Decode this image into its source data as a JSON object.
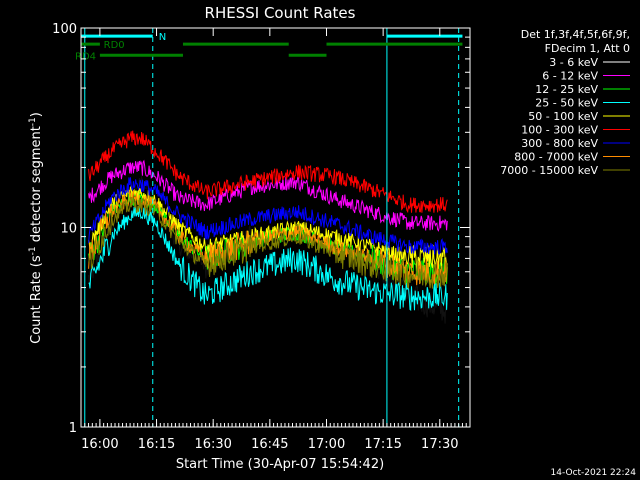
{
  "chart_data": {
    "type": "line",
    "title": "RHESSI Count Rates",
    "xlabel": "Start Time (30-Apr-07 15:54:42)",
    "ylabel_main": "Count Rate (s",
    "ylabel_sup": "-1",
    "ylabel_rest": " detector segment",
    "ylabel_sup2": "-1",
    "ylabel_close": ")",
    "x_range_minutes": [
      -5,
      98
    ],
    "x_tick_labels": [
      "16:00",
      "16:15",
      "16:30",
      "16:45",
      "17:00",
      "17:15",
      "17:30"
    ],
    "x_tick_minutes": [
      0,
      15,
      30,
      45,
      60,
      75,
      90
    ],
    "y_scale": "log",
    "ylim": [
      1,
      100
    ],
    "y_tick_labels": [
      "1",
      "10",
      "100"
    ],
    "y_tick_values": [
      1,
      10,
      100
    ],
    "legend_header": [
      "Det 1f,3f,4f,5f,6f,9f,",
      "FDecim 1, Att 0"
    ],
    "legend_placement": "right",
    "series": [
      {
        "name": "3 - 6 keV",
        "color": "#000000",
        "values": [
          5.5,
          10,
          15.5,
          17,
          13,
          8,
          6.5,
          8.8,
          9.5,
          8,
          7,
          4.5,
          3.8
        ]
      },
      {
        "name": "6 - 12 keV",
        "color": "#ff00ff",
        "values": [
          14,
          18,
          20,
          20,
          18,
          14,
          13,
          16,
          17,
          14,
          12,
          10.5,
          10.5
        ]
      },
      {
        "name": "12 - 25 keV",
        "color": "#00ff00",
        "values": [
          7,
          12,
          14,
          14,
          13,
          9,
          7,
          8.5,
          9.5,
          8,
          7,
          6,
          6
        ]
      },
      {
        "name": "25 - 50 keV",
        "color": "#00ffff",
        "values": [
          5,
          9,
          11.5,
          12,
          10.5,
          6.5,
          4.5,
          6,
          7,
          5.5,
          4.8,
          4.5,
          4.5
        ]
      },
      {
        "name": "50 - 100 keV",
        "color": "#ffff00",
        "values": [
          8,
          13,
          15,
          15,
          13.5,
          10,
          8,
          9,
          10,
          9,
          8,
          7,
          7
        ]
      },
      {
        "name": "100 - 300 keV",
        "color": "#ff0000",
        "values": [
          18,
          24,
          28,
          28,
          24,
          18,
          15,
          17,
          19,
          18,
          15.5,
          13,
          13
        ]
      },
      {
        "name": "300 - 800 keV",
        "color": "#0000ff",
        "values": [
          9,
          14,
          16.5,
          16.5,
          15,
          11.5,
          9.5,
          11,
          12,
          10.5,
          9,
          8,
          8
        ]
      },
      {
        "name": "800 - 7000 keV",
        "color": "#ff8c00",
        "values": [
          7,
          12,
          14,
          14,
          12.5,
          9,
          7,
          8.5,
          9.5,
          8,
          7,
          6,
          6
        ]
      },
      {
        "name": "7000 - 15000 keV",
        "color": "#808000",
        "values": [
          6.5,
          11,
          13,
          13,
          12,
          8.5,
          6.5,
          8,
          9,
          7.5,
          6.5,
          5.8,
          5.8
        ]
      }
    ],
    "sample_minutes": [
      -3,
      3,
      8,
      11,
      15,
      21,
      28,
      40,
      52,
      62,
      72,
      82,
      92
    ],
    "state_bars": [
      {
        "label": "N",
        "color": "#00ffff",
        "level": 91,
        "segments": [
          [
            -5,
            14
          ],
          [
            76,
            96
          ]
        ]
      },
      {
        "label": "RD0",
        "color": "#008000",
        "level": 83,
        "segments": [
          [
            -5,
            0
          ],
          [
            22,
            50
          ],
          [
            60,
            96
          ]
        ]
      },
      {
        "label": "RD4",
        "color": "#008000",
        "level": 73,
        "segments": [
          [
            0,
            22
          ],
          [
            50,
            60
          ]
        ]
      }
    ],
    "vertical_lines": [
      {
        "minute": -4,
        "style": "solid",
        "color": "#00ffff"
      },
      {
        "minute": 14,
        "style": "dashed",
        "color": "#00ffff"
      },
      {
        "minute": 76,
        "style": "solid",
        "color": "#00ffff"
      },
      {
        "minute": 95,
        "style": "dashed",
        "color": "#00ffff"
      }
    ],
    "grid": false
  },
  "footer": {
    "timestamp": "14-Oct-2021 22:24"
  }
}
